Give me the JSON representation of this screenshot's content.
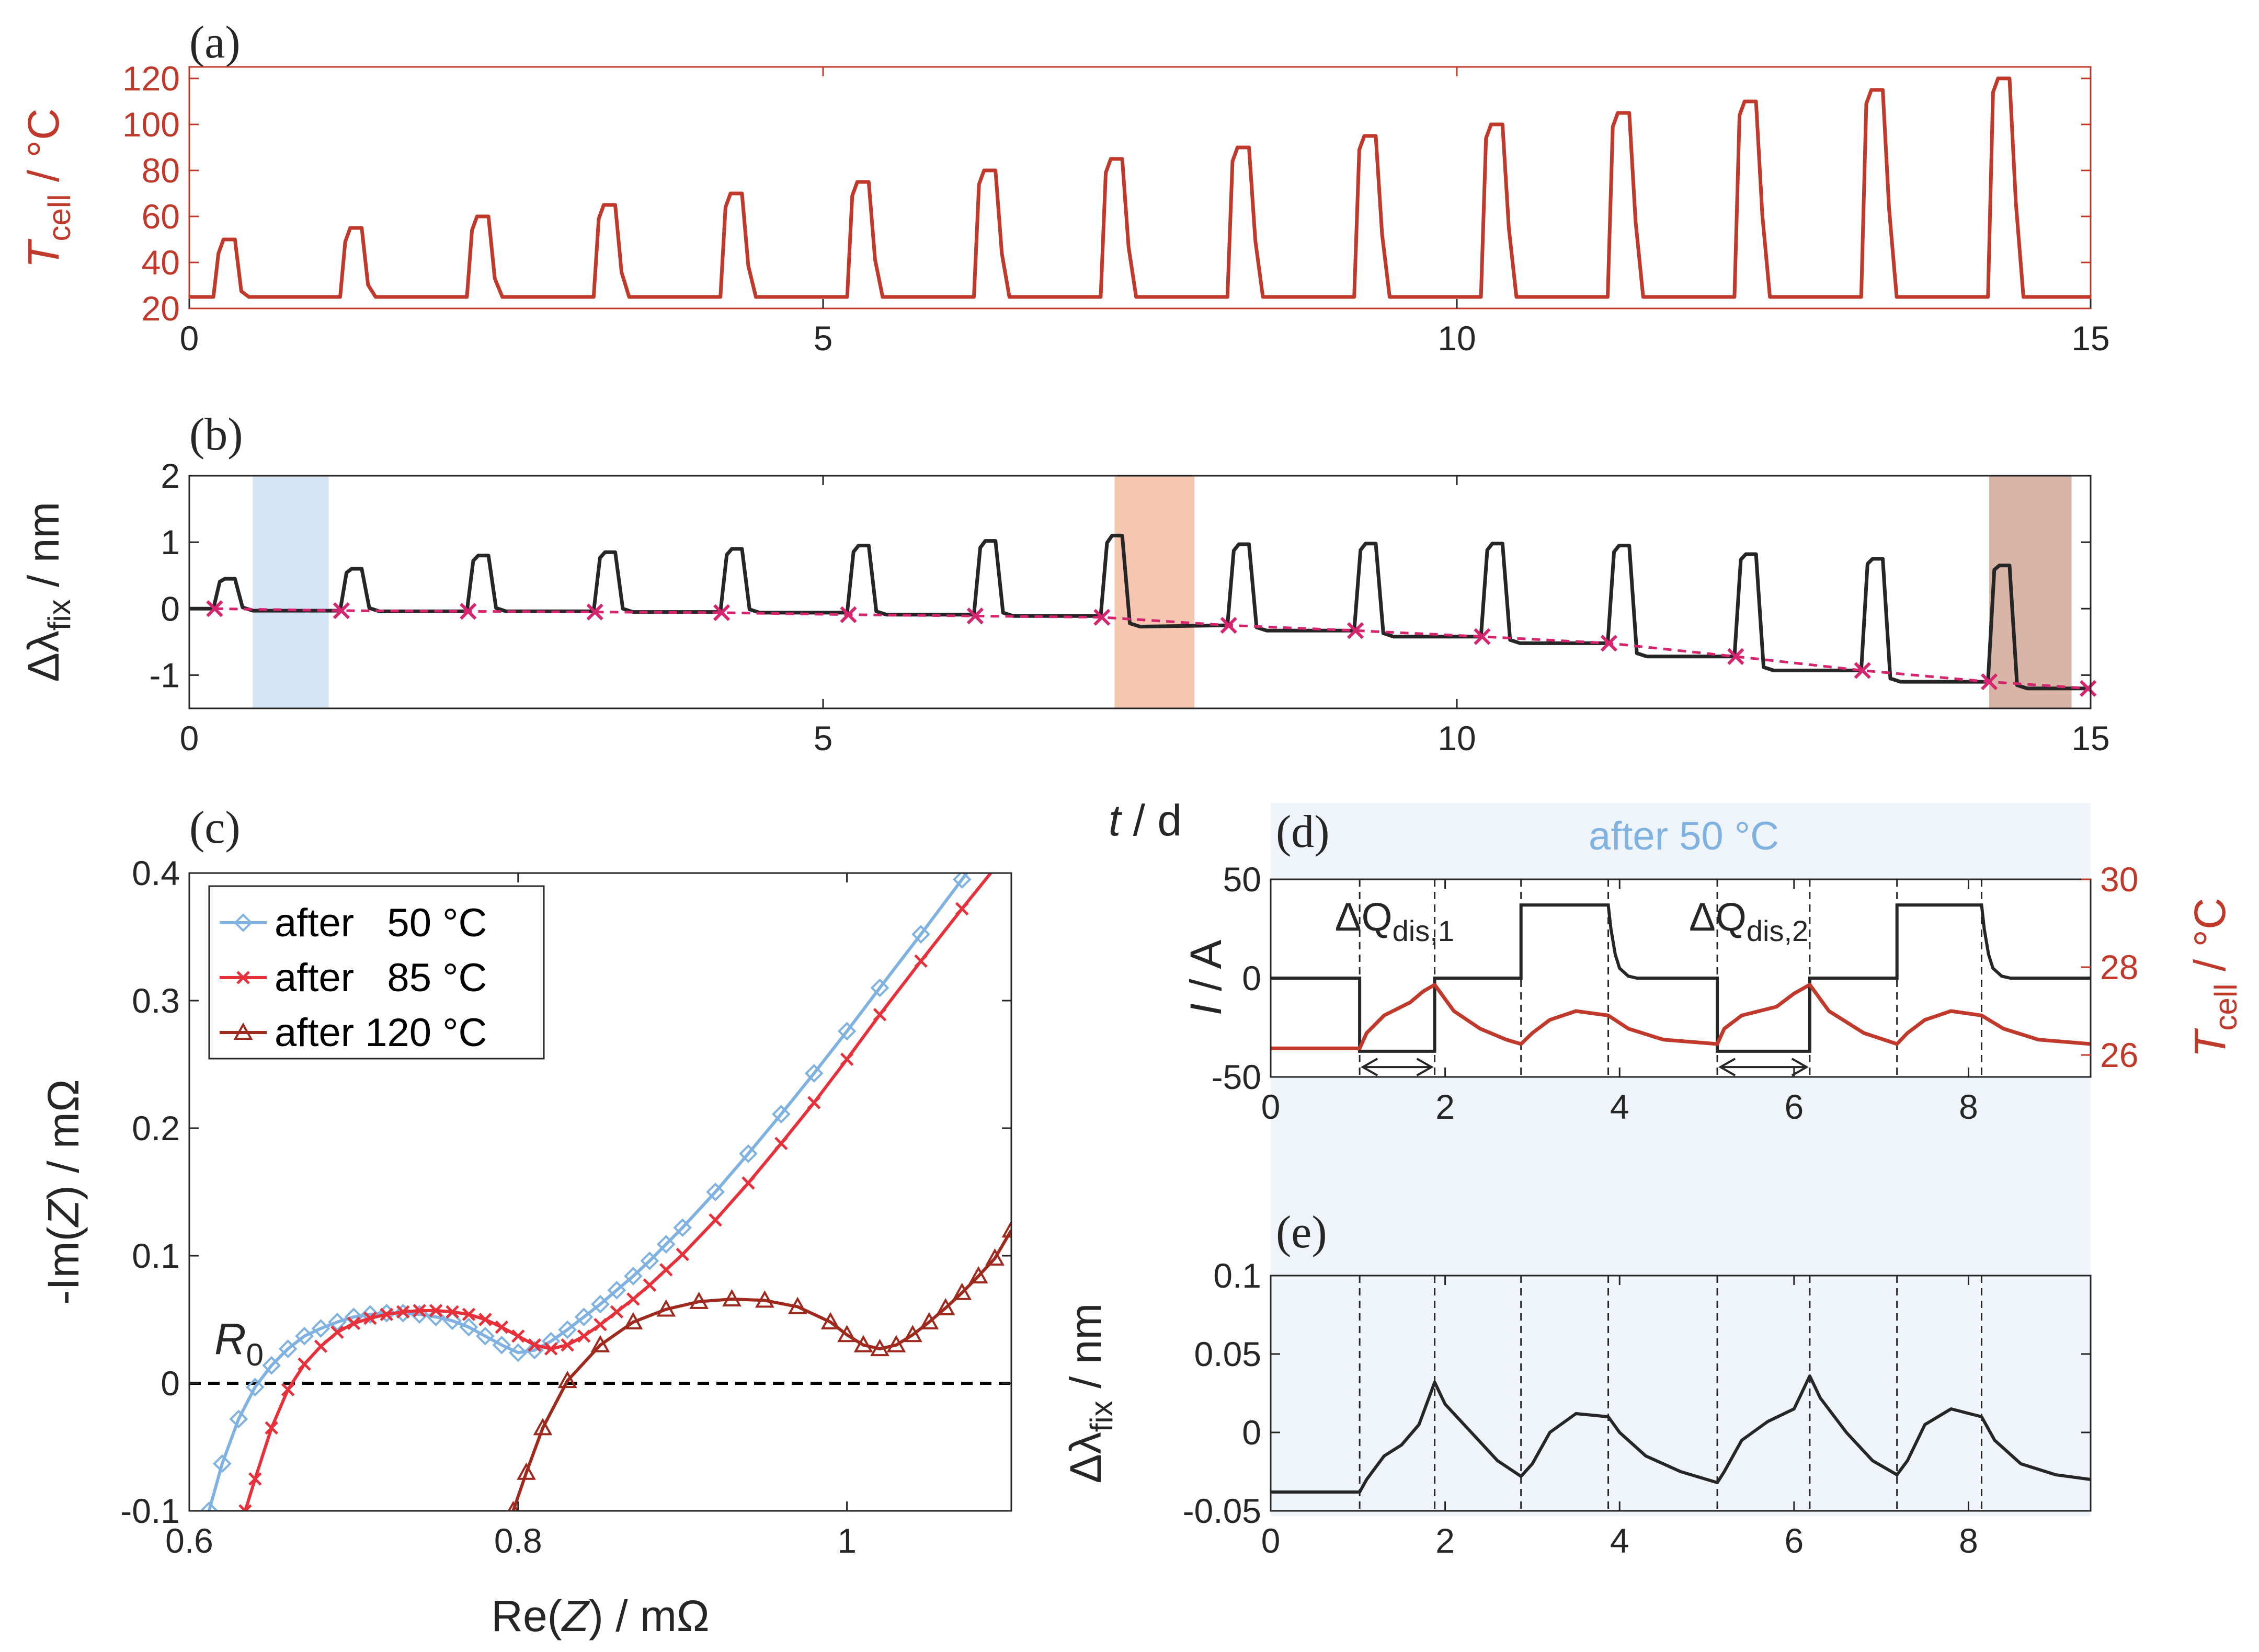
{
  "colors": {
    "red": "#c0392b",
    "black": "#262626",
    "magenta": "#d6246e",
    "blue": "#7fb2e0",
    "bright_red": "#e8303a",
    "dark_red": "#a0291e",
    "panel_bg": "#eef4fa",
    "shade_blue": "#d6e5f5",
    "shade_orange": "#f7c6b1",
    "shade_brown": "#d9b5a7"
  },
  "chart_data": [
    {
      "id": "a",
      "type": "line",
      "panel_label": "(a)",
      "xlabel": "",
      "ylabel": "T_cell / °C",
      "ylabel_main": "T",
      "ylabel_sub": "cell",
      "ylabel_unit": " / °C",
      "xlim": [
        0,
        15
      ],
      "ylim": [
        20,
        125
      ],
      "xticks": [
        0,
        5,
        10,
        15
      ],
      "yticks": [
        20,
        40,
        60,
        80,
        100,
        120
      ],
      "pulses": [
        {
          "start": 0.2,
          "end": 0.38,
          "peak": 50
        },
        {
          "start": 1.2,
          "end": 1.38,
          "peak": 55
        },
        {
          "start": 2.2,
          "end": 2.38,
          "peak": 60
        },
        {
          "start": 3.2,
          "end": 3.38,
          "peak": 65
        },
        {
          "start": 4.2,
          "end": 4.38,
          "peak": 70
        },
        {
          "start": 5.2,
          "end": 5.38,
          "peak": 75
        },
        {
          "start": 6.2,
          "end": 6.38,
          "peak": 80
        },
        {
          "start": 7.2,
          "end": 7.38,
          "peak": 85
        },
        {
          "start": 8.2,
          "end": 8.38,
          "peak": 90
        },
        {
          "start": 9.2,
          "end": 9.38,
          "peak": 95
        },
        {
          "start": 10.2,
          "end": 10.38,
          "peak": 100
        },
        {
          "start": 11.2,
          "end": 11.38,
          "peak": 105
        },
        {
          "start": 12.2,
          "end": 12.38,
          "peak": 110
        },
        {
          "start": 13.2,
          "end": 13.38,
          "peak": 115
        },
        {
          "start": 14.2,
          "end": 14.38,
          "peak": 120
        }
      ],
      "baseline": 25
    },
    {
      "id": "b",
      "type": "line",
      "panel_label": "(b)",
      "xlabel": "t / d",
      "xlabel_main": "t",
      "xlabel_unit": " / d",
      "ylabel": "Δλ_fix / nm",
      "ylabel_main": "Δλ",
      "ylabel_sub": "fix",
      "ylabel_unit": " / nm",
      "xlim": [
        0,
        15
      ],
      "ylim": [
        -1.5,
        2
      ],
      "xticks": [
        0,
        5,
        10,
        15
      ],
      "yticks": [
        -1,
        0,
        1,
        2
      ],
      "shaded_regions": [
        {
          "x0": 0.5,
          "x1": 1.1,
          "color": "shade_blue"
        },
        {
          "x0": 7.3,
          "x1": 7.93,
          "color": "shade_orange"
        },
        {
          "x0": 14.2,
          "x1": 14.85,
          "color": "shade_brown"
        }
      ],
      "cycles": [
        {
          "start": 0.2,
          "end": 0.38,
          "peak": 0.45,
          "base_before": 0.0,
          "base_after": -0.03
        },
        {
          "start": 1.2,
          "end": 1.38,
          "peak": 0.6,
          "base_before": -0.03,
          "base_after": -0.04
        },
        {
          "start": 2.2,
          "end": 2.38,
          "peak": 0.8,
          "base_before": -0.04,
          "base_after": -0.04
        },
        {
          "start": 3.2,
          "end": 3.38,
          "peak": 0.85,
          "base_before": -0.04,
          "base_after": -0.05
        },
        {
          "start": 4.2,
          "end": 4.38,
          "peak": 0.9,
          "base_before": -0.05,
          "base_after": -0.06
        },
        {
          "start": 5.2,
          "end": 5.38,
          "peak": 0.95,
          "base_before": -0.06,
          "base_after": -0.09
        },
        {
          "start": 6.2,
          "end": 6.38,
          "peak": 1.02,
          "base_before": -0.09,
          "base_after": -0.11
        },
        {
          "start": 7.2,
          "end": 7.38,
          "peak": 1.1,
          "base_before": -0.11,
          "base_after": -0.27
        },
        {
          "start": 8.2,
          "end": 8.38,
          "peak": 0.97,
          "base_before": -0.25,
          "base_after": -0.33
        },
        {
          "start": 9.2,
          "end": 9.38,
          "peak": 0.98,
          "base_before": -0.33,
          "base_after": -0.42
        },
        {
          "start": 10.2,
          "end": 10.38,
          "peak": 0.98,
          "base_before": -0.42,
          "base_after": -0.52
        },
        {
          "start": 11.2,
          "end": 11.38,
          "peak": 0.95,
          "base_before": -0.52,
          "base_after": -0.72
        },
        {
          "start": 12.2,
          "end": 12.38,
          "peak": 0.82,
          "base_before": -0.72,
          "base_after": -0.93
        },
        {
          "start": 13.2,
          "end": 13.38,
          "peak": 0.75,
          "base_before": -0.93,
          "base_after": -1.1
        },
        {
          "start": 14.2,
          "end": 14.38,
          "peak": 0.65,
          "base_before": -1.1,
          "base_after": -1.2
        }
      ],
      "markers": [
        {
          "x": 0.2,
          "y": 0.0
        },
        {
          "x": 1.2,
          "y": -0.03
        },
        {
          "x": 2.2,
          "y": -0.04
        },
        {
          "x": 3.2,
          "y": -0.05
        },
        {
          "x": 4.2,
          "y": -0.06
        },
        {
          "x": 5.2,
          "y": -0.09
        },
        {
          "x": 6.2,
          "y": -0.11
        },
        {
          "x": 7.2,
          "y": -0.13
        },
        {
          "x": 8.2,
          "y": -0.25
        },
        {
          "x": 9.2,
          "y": -0.33
        },
        {
          "x": 10.2,
          "y": -0.42
        },
        {
          "x": 11.2,
          "y": -0.52
        },
        {
          "x": 12.2,
          "y": -0.72
        },
        {
          "x": 13.2,
          "y": -0.93
        },
        {
          "x": 14.2,
          "y": -1.1
        },
        {
          "x": 14.98,
          "y": -1.2
        }
      ]
    },
    {
      "id": "c",
      "type": "line",
      "panel_label": "(c)",
      "xlabel": "Re(Z) / mΩ",
      "xlabel_parts": [
        "Re(",
        "Z",
        ") / mΩ"
      ],
      "ylabel": "-Im(Z) / mΩ",
      "ylabel_parts": [
        "-Im(",
        "Z",
        ") / mΩ"
      ],
      "xlim": [
        0.6,
        1.1
      ],
      "ylim": [
        -0.1,
        0.4
      ],
      "xticks": [
        0.6,
        0.8,
        1.0
      ],
      "xtick_labels": [
        "0.6",
        "0.8",
        "1"
      ],
      "yticks": [
        -0.1,
        0,
        0.1,
        0.2,
        0.3,
        0.4
      ],
      "ytick_labels": [
        "-0.1",
        "0",
        "0.1",
        "0.2",
        "0.3",
        "0.4"
      ],
      "annotation": {
        "text": "R",
        "sub": "0"
      },
      "legend": [
        "after   50 °C",
        "after   85 °C",
        "after 120 °C"
      ],
      "series": [
        {
          "name": "after   50 °C",
          "color": "blue",
          "marker": "diamond",
          "x": [
            0.612,
            0.62,
            0.63,
            0.64,
            0.65,
            0.66,
            0.67,
            0.68,
            0.69,
            0.7,
            0.71,
            0.72,
            0.73,
            0.74,
            0.75,
            0.76,
            0.77,
            0.78,
            0.79,
            0.8,
            0.81,
            0.82,
            0.83,
            0.84,
            0.85,
            0.86,
            0.87,
            0.88,
            0.89,
            0.9,
            0.92,
            0.94,
            0.96,
            0.98,
            1.0,
            1.02,
            1.045,
            1.07,
            1.09
          ],
          "y": [
            -0.1,
            -0.063,
            -0.028,
            -0.003,
            0.014,
            0.027,
            0.037,
            0.043,
            0.048,
            0.052,
            0.054,
            0.055,
            0.055,
            0.054,
            0.052,
            0.049,
            0.044,
            0.037,
            0.03,
            0.024,
            0.026,
            0.033,
            0.042,
            0.052,
            0.062,
            0.073,
            0.084,
            0.096,
            0.109,
            0.122,
            0.15,
            0.18,
            0.211,
            0.243,
            0.276,
            0.31,
            0.352,
            0.395,
            0.43
          ]
        },
        {
          "name": "after   85 °C",
          "color": "bright_red",
          "marker": "x",
          "x": [
            0.634,
            0.64,
            0.65,
            0.66,
            0.67,
            0.68,
            0.69,
            0.7,
            0.71,
            0.72,
            0.73,
            0.74,
            0.75,
            0.76,
            0.77,
            0.78,
            0.79,
            0.8,
            0.81,
            0.82,
            0.83,
            0.84,
            0.85,
            0.86,
            0.87,
            0.88,
            0.89,
            0.9,
            0.92,
            0.94,
            0.96,
            0.98,
            1.0,
            1.02,
            1.045,
            1.07,
            1.1
          ],
          "y": [
            -0.1,
            -0.075,
            -0.035,
            -0.005,
            0.015,
            0.029,
            0.04,
            0.047,
            0.051,
            0.054,
            0.056,
            0.057,
            0.057,
            0.056,
            0.054,
            0.05,
            0.044,
            0.037,
            0.03,
            0.027,
            0.03,
            0.037,
            0.046,
            0.056,
            0.066,
            0.077,
            0.089,
            0.101,
            0.128,
            0.157,
            0.188,
            0.22,
            0.254,
            0.289,
            0.331,
            0.372,
            0.42
          ]
        },
        {
          "name": "after 120 °C",
          "color": "dark_red",
          "marker": "triangle",
          "x": [
            0.797,
            0.805,
            0.815,
            0.83,
            0.85,
            0.87,
            0.89,
            0.91,
            0.93,
            0.95,
            0.97,
            0.99,
            1.0,
            1.01,
            1.02,
            1.03,
            1.04,
            1.05,
            1.06,
            1.07,
            1.08,
            1.09,
            1.1
          ],
          "y": [
            -0.1,
            -0.07,
            -0.035,
            0.002,
            0.03,
            0.048,
            0.058,
            0.064,
            0.066,
            0.065,
            0.06,
            0.048,
            0.038,
            0.03,
            0.027,
            0.03,
            0.038,
            0.048,
            0.059,
            0.071,
            0.084,
            0.098,
            0.12
          ]
        }
      ]
    },
    {
      "id": "d",
      "type": "line",
      "panel_label": "(d)",
      "title": "after 50 °C",
      "xlabel": "",
      "ylabel": "I / A",
      "ylabel_main": "I",
      "ylabel_unit": " / A",
      "ylabel_right": "T_cell / °C",
      "ylabel_right_main": "T",
      "ylabel_right_sub": "cell",
      "ylabel_right_unit": " / °C",
      "xlim": [
        0,
        9.4
      ],
      "ylim": [
        -50,
        50
      ],
      "ylim_right": [
        25.5,
        30
      ],
      "xticks": [
        0,
        2,
        4,
        6,
        8
      ],
      "yticks": [
        -50,
        0,
        50
      ],
      "yticks_right": [
        26,
        28,
        30
      ],
      "annotations": [
        {
          "main": "ΔQ",
          "sub": "dis,1",
          "x": 1.42
        },
        {
          "main": "ΔQ",
          "sub": "dis,2",
          "x": 5.48
        }
      ],
      "vlines": [
        1.02,
        1.88,
        2.87,
        3.87,
        5.12,
        6.18,
        7.18,
        8.15
      ],
      "current": {
        "x": [
          0,
          1.02,
          1.02,
          1.88,
          1.88,
          2.87,
          2.87,
          3.87,
          3.9,
          3.95,
          4.0,
          4.1,
          4.2,
          5.12,
          5.12,
          6.18,
          6.18,
          7.18,
          7.18,
          8.15,
          8.18,
          8.23,
          8.28,
          8.38,
          8.48,
          9.4
        ],
        "y": [
          0,
          0,
          -37,
          -37,
          0,
          0,
          37,
          37,
          25,
          12,
          5,
          1,
          0,
          0,
          -37,
          -37,
          0,
          0,
          37,
          37,
          25,
          12,
          5,
          1,
          0,
          0
        ]
      },
      "temperature": {
        "x": [
          0,
          0.5,
          1.02,
          1.1,
          1.3,
          1.6,
          1.75,
          1.88,
          2.1,
          2.4,
          2.7,
          2.87,
          3.0,
          3.2,
          3.5,
          3.87,
          4.1,
          4.5,
          5.12,
          5.2,
          5.4,
          5.8,
          6.0,
          6.18,
          6.4,
          6.8,
          7.18,
          7.3,
          7.5,
          7.8,
          8.15,
          8.4,
          8.8,
          9.4
        ],
        "y": [
          26.15,
          26.15,
          26.15,
          26.5,
          26.9,
          27.2,
          27.45,
          27.6,
          27.0,
          26.6,
          26.35,
          26.25,
          26.5,
          26.8,
          27.0,
          26.9,
          26.6,
          26.35,
          26.25,
          26.6,
          26.9,
          27.1,
          27.4,
          27.6,
          27.0,
          26.5,
          26.25,
          26.5,
          26.8,
          27.0,
          26.9,
          26.6,
          26.35,
          26.25
        ]
      },
      "arrows": [
        [
          1.02,
          1.88
        ],
        [
          5.12,
          6.18
        ]
      ]
    },
    {
      "id": "e",
      "type": "line",
      "panel_label": "(e)",
      "xlabel": "",
      "ylabel": "Δλ_fix / nm",
      "ylabel_main": "Δλ",
      "ylabel_sub": "fix",
      "ylabel_unit": " / nm",
      "xlim": [
        0,
        9.4
      ],
      "ylim": [
        -0.05,
        0.1
      ],
      "xticks": [
        0,
        2,
        4,
        6,
        8
      ],
      "yticks": [
        -0.05,
        0,
        0.05,
        0.1
      ],
      "ytick_labels": [
        "-0.05",
        "0",
        "0.05",
        "0.1"
      ],
      "vlines": [
        1.02,
        1.88,
        2.87,
        3.87,
        5.12,
        6.18,
        7.18,
        8.15
      ],
      "signal": {
        "x": [
          0,
          0.5,
          1.02,
          1.1,
          1.3,
          1.5,
          1.7,
          1.88,
          2.0,
          2.3,
          2.6,
          2.87,
          3.0,
          3.2,
          3.5,
          3.87,
          4.0,
          4.3,
          4.7,
          5.12,
          5.2,
          5.4,
          5.7,
          6.0,
          6.18,
          6.3,
          6.6,
          6.9,
          7.18,
          7.3,
          7.5,
          7.8,
          8.15,
          8.3,
          8.6,
          9.0,
          9.4
        ],
        "y": [
          -0.038,
          -0.038,
          -0.038,
          -0.03,
          -0.015,
          -0.008,
          0.005,
          0.032,
          0.018,
          0.0,
          -0.018,
          -0.028,
          -0.02,
          0.0,
          0.012,
          0.01,
          0.0,
          -0.015,
          -0.025,
          -0.032,
          -0.025,
          -0.005,
          0.007,
          0.015,
          0.036,
          0.022,
          0.0,
          -0.018,
          -0.027,
          -0.018,
          0.005,
          0.015,
          0.01,
          -0.005,
          -0.02,
          -0.027,
          -0.03
        ]
      }
    }
  ]
}
